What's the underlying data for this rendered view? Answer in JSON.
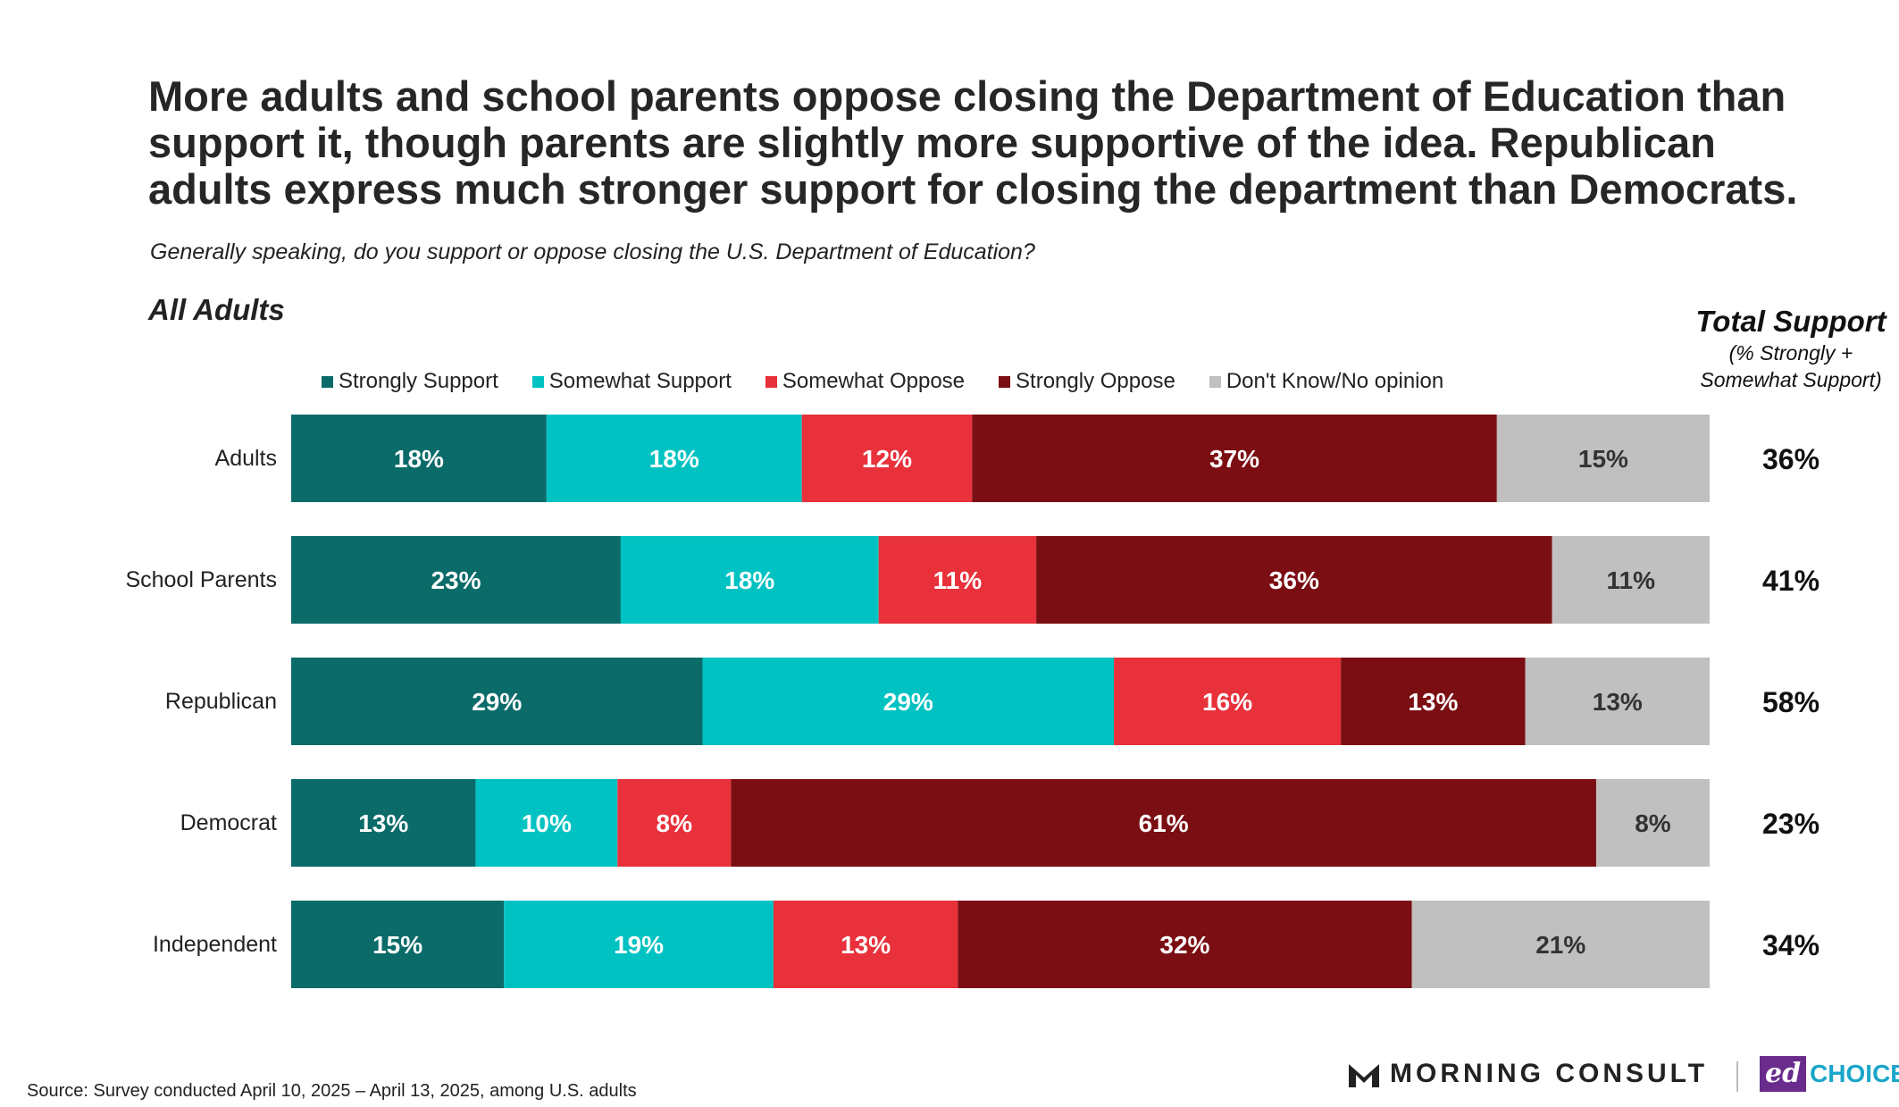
{
  "title_lines": [
    "More adults and school parents oppose closing the Department of Education than",
    "support it, though parents are slightly more supportive of the idea. Republican",
    "adults express much stronger support for closing the department than Democrats."
  ],
  "subtitle": "Generally speaking, do you support or oppose closing the U.S. Department of Education?",
  "group_label": "All Adults",
  "total_support_header": {
    "title": "Total Support",
    "line1": "(% Strongly +",
    "line2": "Somewhat Support)"
  },
  "source": "Source: Survey conducted April 10, 2025 – April 13, 2025, among U.S. adults",
  "logos": {
    "morning_consult": "MORNING CONSULT",
    "edchoice_ed": "ed",
    "edchoice_choice": "CHOICE"
  },
  "chart_data": {
    "type": "bar",
    "orientation": "horizontal",
    "stacked": true,
    "categories": [
      "Adults",
      "School Parents",
      "Republican",
      "Democrat",
      "Independent"
    ],
    "series": [
      {
        "name": "Strongly Support",
        "color": "#0a6b69",
        "values": [
          18,
          23,
          29,
          13,
          15
        ]
      },
      {
        "name": "Somewhat Support",
        "color": "#00c2c2",
        "values": [
          18,
          18,
          29,
          10,
          19
        ]
      },
      {
        "name": "Somewhat Oppose",
        "color": "#e8313b",
        "values": [
          12,
          11,
          16,
          8,
          13
        ]
      },
      {
        "name": "Strongly Oppose",
        "color": "#7b0e12",
        "values": [
          37,
          36,
          13,
          61,
          32
        ]
      },
      {
        "name": "Don't Know/No opinion",
        "color": "#c0c0c0",
        "values": [
          15,
          11,
          13,
          8,
          21
        ]
      }
    ],
    "data_labels": [
      [
        "18%",
        "18%",
        "12%",
        "37%",
        "15%"
      ],
      [
        "23%",
        "18%",
        "11%",
        "36%",
        "11%"
      ],
      [
        "29%",
        "29%",
        "16%",
        "13%",
        "13%"
      ],
      [
        "13%",
        "10%",
        "8%",
        "61%",
        "8%"
      ],
      [
        "15%",
        "19%",
        "13%",
        "32%",
        "21%"
      ]
    ],
    "total_support_labels": [
      "36%",
      "41%",
      "58%",
      "23%",
      "34%"
    ],
    "unit": "%",
    "legend_position": "top",
    "grid": false
  }
}
